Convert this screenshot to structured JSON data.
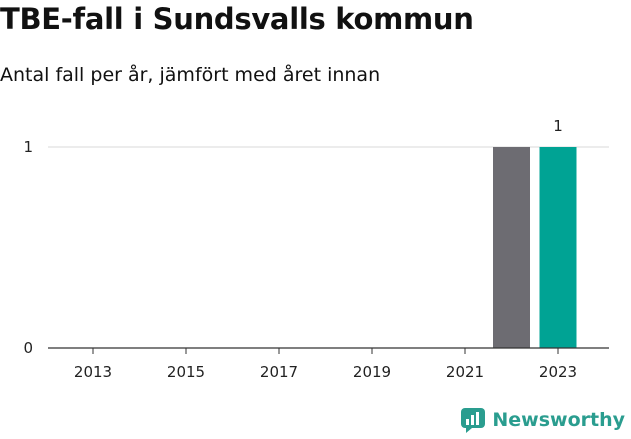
{
  "title": "TBE-fall i Sundsvalls kommun",
  "subtitle": "Antal fall per år, jämfört med året innan",
  "brand": {
    "name": "Newsworthy",
    "icon": "newsworthy-logo-icon",
    "color": "#2a9d8f"
  },
  "chart_data": {
    "type": "bar",
    "x": [
      2013,
      2014,
      2015,
      2016,
      2017,
      2018,
      2019,
      2020,
      2021,
      2022,
      2023
    ],
    "values": [
      0,
      0,
      0,
      0,
      0,
      0,
      0,
      0,
      0,
      1,
      1
    ],
    "xticks": [
      "2013",
      "2015",
      "2017",
      "2019",
      "2021",
      "2023"
    ],
    "yticks": [
      0,
      1
    ],
    "ylim": [
      0,
      1
    ],
    "grid": true,
    "highlight": {
      "x": 2023,
      "value": 1,
      "label": "1"
    },
    "colors": {
      "previous": "#6d6c72",
      "current": "#00a394",
      "grid": "#d8d8d8",
      "axis": "#333333"
    }
  }
}
